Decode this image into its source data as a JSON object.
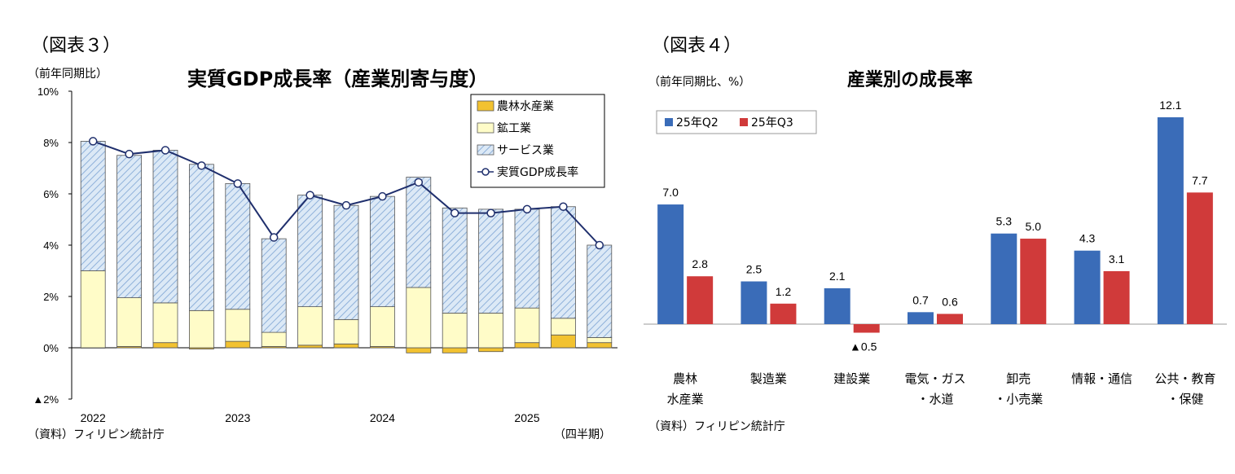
{
  "left": {
    "figure_label": "（図表３）",
    "unit_label": "（前年同期比）",
    "source": "（資料）フィリピン統計庁",
    "period_unit": "（四半期）"
  },
  "right": {
    "figure_label": "（図表４）",
    "unit_label": "（前年同期比、%）",
    "source": "（資料）フィリピン統計庁"
  },
  "chart_data": [
    {
      "type": "bar",
      "title": "実質GDP成長率（産業別寄与度）",
      "stacked": true,
      "ylim": [
        -2,
        10
      ],
      "y_ticks": [
        10,
        8,
        6,
        4,
        2,
        0,
        -2
      ],
      "y_tick_labels": [
        "10%",
        "8%",
        "6%",
        "4%",
        "2%",
        "0%",
        "▲2%"
      ],
      "x_year_labels": [
        {
          "label": "2022",
          "index": 0
        },
        {
          "label": "2023",
          "index": 4
        },
        {
          "label": "2024",
          "index": 8
        },
        {
          "label": "2025",
          "index": 12
        }
      ],
      "categories": [
        "2022Q1",
        "2022Q2",
        "2022Q3",
        "2022Q4",
        "2023Q1",
        "2023Q2",
        "2023Q3",
        "2023Q4",
        "2024Q1",
        "2024Q2",
        "2024Q3",
        "2024Q4",
        "2025Q1",
        "2025Q2",
        "2025Q3"
      ],
      "series": [
        {
          "name": "農林水産業",
          "kind": "bar",
          "color": "#f2c230",
          "values": [
            0.0,
            0.05,
            0.2,
            -0.05,
            0.25,
            0.05,
            0.1,
            0.15,
            0.05,
            -0.2,
            -0.2,
            -0.15,
            0.2,
            0.5,
            0.2
          ]
        },
        {
          "name": "鉱工業",
          "kind": "bar",
          "color": "#fffcc8",
          "values": [
            3.0,
            1.9,
            1.55,
            1.45,
            1.25,
            0.55,
            1.5,
            0.95,
            1.55,
            2.35,
            1.35,
            1.35,
            1.35,
            0.65,
            0.2
          ]
        },
        {
          "name": "サービス業",
          "kind": "bar",
          "color": "#dce9f6",
          "hatch": "#8fb1da",
          "values": [
            5.05,
            5.55,
            5.95,
            5.7,
            4.9,
            3.65,
            4.35,
            4.45,
            4.3,
            4.3,
            4.1,
            4.05,
            3.85,
            4.35,
            3.6
          ]
        },
        {
          "name": "実質GDP成長率",
          "kind": "line",
          "color": "#1f2f6d",
          "values": [
            8.05,
            7.55,
            7.7,
            7.1,
            6.4,
            4.3,
            5.95,
            5.55,
            5.9,
            6.45,
            5.25,
            5.25,
            5.4,
            5.5,
            4.0
          ]
        }
      ],
      "legend_position": "top-right"
    },
    {
      "type": "bar",
      "title": "産業別の成長率",
      "categories": [
        "農林水産業",
        "製造業",
        "建設業",
        "電気・ガス・水道",
        "卸売・小売業",
        "情報・通信",
        "公共・教育・保健"
      ],
      "category_labels": [
        [
          "農林",
          "水産業"
        ],
        [
          "製造業"
        ],
        [
          "建設業"
        ],
        [
          "電気・ガス",
          "・水道"
        ],
        [
          "卸売",
          "・小売業"
        ],
        [
          "情報・通信"
        ],
        [
          "公共・教育",
          "・保健"
        ]
      ],
      "series": [
        {
          "name": "25年Q2",
          "color": "#3a6cb8",
          "values": [
            7.0,
            2.5,
            2.1,
            0.7,
            5.3,
            4.3,
            12.1
          ],
          "labels": [
            "7.0",
            "2.5",
            "2.1",
            "0.7",
            "5.3",
            "4.3",
            "12.1"
          ]
        },
        {
          "name": "25年Q3",
          "color": "#d03a3a",
          "values": [
            2.8,
            1.2,
            -0.5,
            0.6,
            5.0,
            3.1,
            7.7
          ],
          "labels": [
            "2.8",
            "1.2",
            "▲0.5",
            "0.6",
            "5.0",
            "3.1",
            "7.7"
          ]
        }
      ],
      "legend_position": "top-left"
    }
  ]
}
